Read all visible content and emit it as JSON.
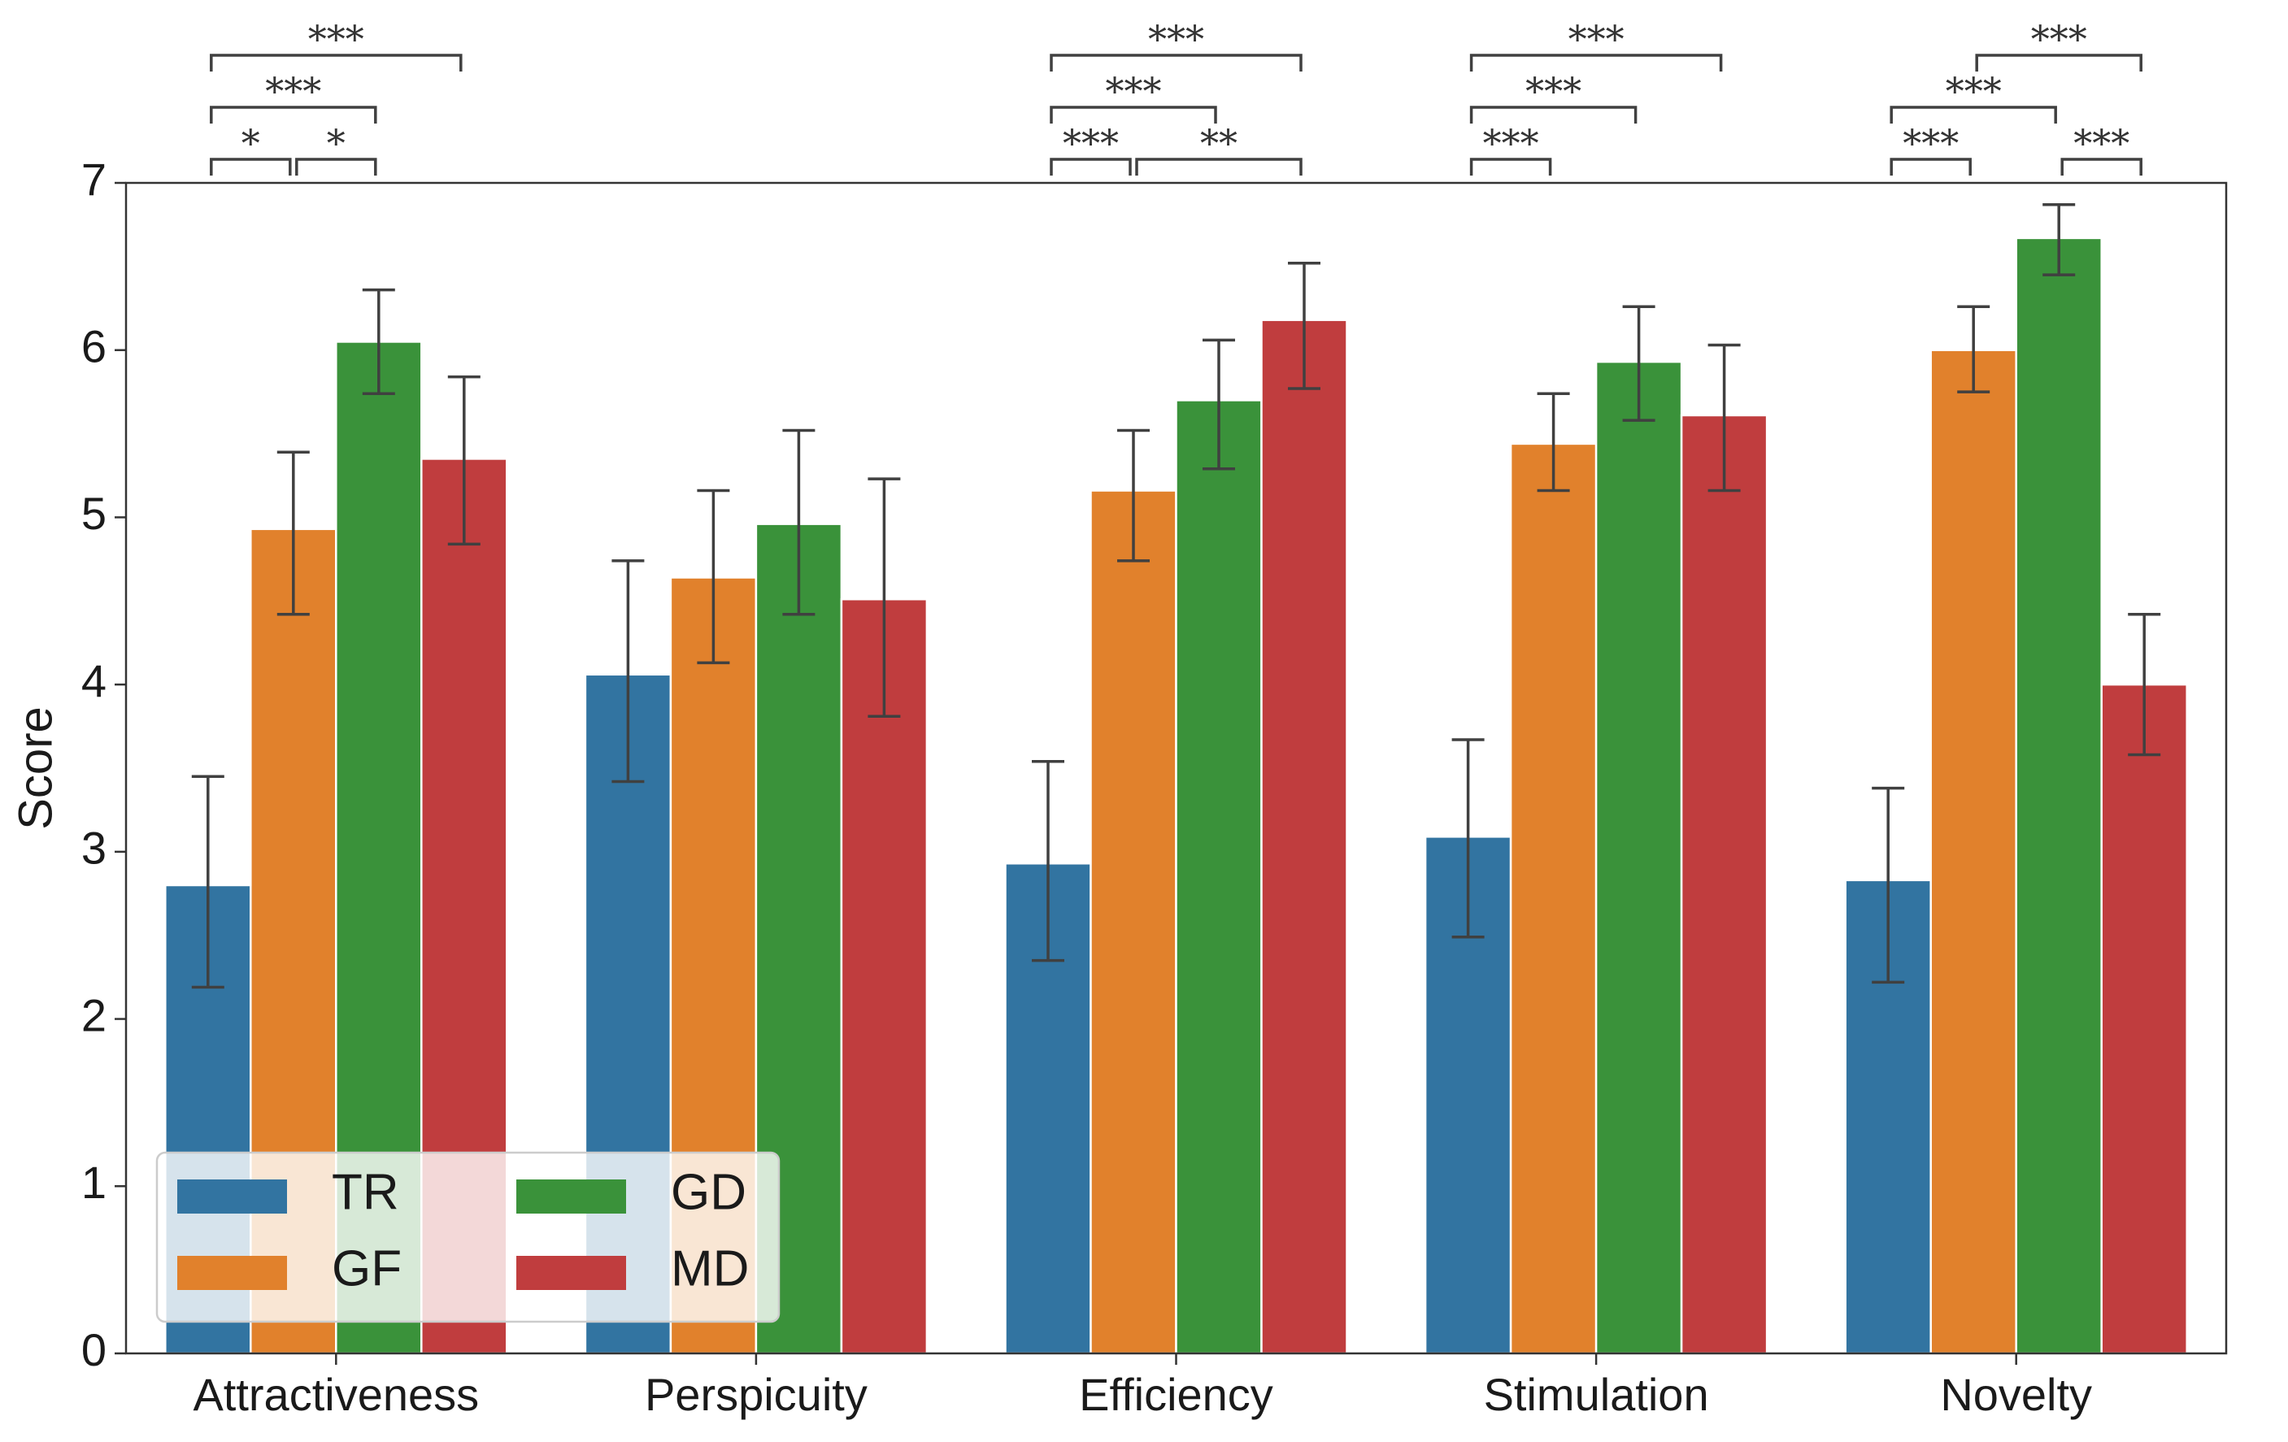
{
  "chart_data": {
    "type": "bar",
    "title": "",
    "xlabel": "",
    "ylabel": "Score",
    "ylim": [
      0,
      7
    ],
    "yticks": [
      0,
      1,
      2,
      3,
      4,
      5,
      6,
      7
    ],
    "categories": [
      "Attractiveness",
      "Perspicuity",
      "Efficiency",
      "Stimulation",
      "Novelty"
    ],
    "series": [
      {
        "name": "TR",
        "color": "#3274a1",
        "values": [
          2.8,
          4.06,
          2.93,
          3.09,
          2.83
        ],
        "ci_low": [
          2.19,
          3.42,
          2.35,
          2.49,
          2.22
        ],
        "ci_high": [
          3.45,
          4.74,
          3.54,
          3.67,
          3.38
        ]
      },
      {
        "name": "GF",
        "color": "#e1812c",
        "values": [
          4.93,
          4.64,
          5.16,
          5.44,
          6.0
        ],
        "ci_low": [
          4.42,
          4.13,
          4.74,
          5.16,
          5.75
        ],
        "ci_high": [
          5.39,
          5.16,
          5.52,
          5.74,
          6.26
        ]
      },
      {
        "name": "GD",
        "color": "#3a923a",
        "values": [
          6.05,
          4.96,
          5.7,
          5.93,
          6.67
        ],
        "ci_low": [
          5.74,
          4.42,
          5.29,
          5.58,
          6.45
        ],
        "ci_high": [
          6.36,
          5.52,
          6.06,
          6.26,
          6.87
        ]
      },
      {
        "name": "MD",
        "color": "#c03d3e",
        "values": [
          5.35,
          4.51,
          6.18,
          5.61,
          4.0
        ],
        "ci_low": [
          4.84,
          3.81,
          5.77,
          5.16,
          3.58
        ],
        "ci_high": [
          5.84,
          5.23,
          6.52,
          6.03,
          4.42
        ]
      }
    ],
    "legend": {
      "position": "lower-left",
      "columns": 2,
      "entries": [
        "TR",
        "GD",
        "GF",
        "MD"
      ]
    },
    "significance": [
      {
        "category": 0,
        "from": "TR",
        "to": "GF",
        "label": "*",
        "level": 1
      },
      {
        "category": 0,
        "from": "GF",
        "to": "GD",
        "label": "*",
        "level": 1
      },
      {
        "category": 0,
        "from": "TR",
        "to": "GD",
        "label": "***",
        "level": 2
      },
      {
        "category": 0,
        "from": "TR",
        "to": "MD",
        "label": "***",
        "level": 3
      },
      {
        "category": 2,
        "from": "TR",
        "to": "GF",
        "label": "***",
        "level": 1
      },
      {
        "category": 2,
        "from": "GF",
        "to": "MD",
        "label": "**",
        "level": 1
      },
      {
        "category": 2,
        "from": "TR",
        "to": "GD",
        "label": "***",
        "level": 2
      },
      {
        "category": 2,
        "from": "TR",
        "to": "MD",
        "label": "***",
        "level": 3
      },
      {
        "category": 3,
        "from": "TR",
        "to": "GF",
        "label": "***",
        "level": 1
      },
      {
        "category": 3,
        "from": "TR",
        "to": "GD",
        "label": "***",
        "level": 2
      },
      {
        "category": 3,
        "from": "TR",
        "to": "MD",
        "label": "***",
        "level": 3
      },
      {
        "category": 4,
        "from": "TR",
        "to": "GF",
        "label": "***",
        "level": 1
      },
      {
        "category": 4,
        "from": "GD",
        "to": "MD",
        "label": "***",
        "level": 1
      },
      {
        "category": 4,
        "from": "TR",
        "to": "GD",
        "label": "***",
        "level": 2
      },
      {
        "category": 4,
        "from": "GF",
        "to": "MD",
        "label": "***",
        "level": 3
      }
    ]
  }
}
